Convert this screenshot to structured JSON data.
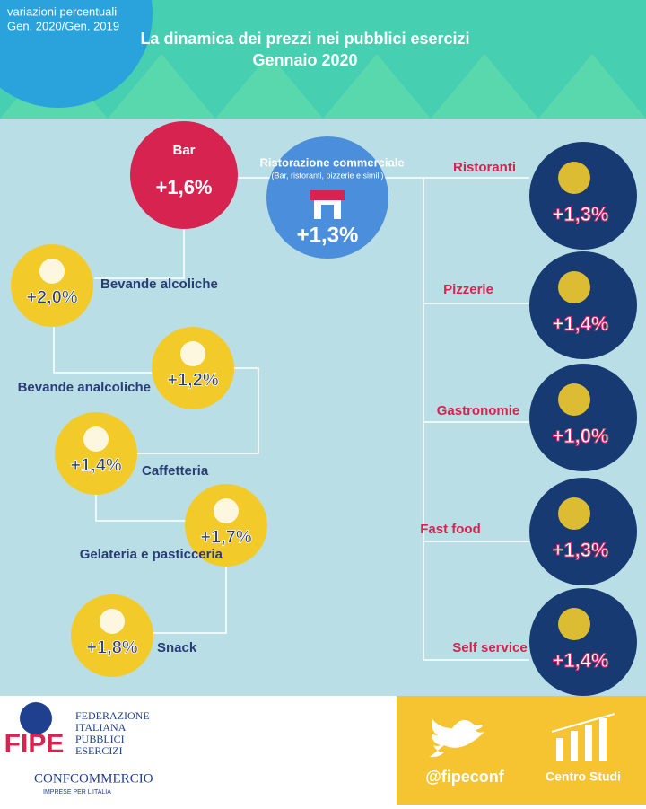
{
  "header": {
    "note": [
      "variazioni percentuali",
      "Gen. 2020/Gen. 2019"
    ],
    "title": [
      "La dinamica dei prezzi nei pubblici esercizi",
      "Gennaio 2020"
    ]
  },
  "center": {
    "label": "Ristorazione commerciale",
    "sublabel": "(Bar, ristoranti, pizzerie e simili)",
    "value": "+1,3%"
  },
  "bar": {
    "label": "Bar",
    "value": "+1,6%"
  },
  "bar_items": [
    {
      "label": "Bevande alcoliche",
      "value": "+2,0%"
    },
    {
      "label": "Bevande analcoliche",
      "value": "+1,2%"
    },
    {
      "label": "Caffetteria",
      "value": "+1,4%"
    },
    {
      "label": "Gelateria e pasticceria",
      "value": "+1,7%"
    },
    {
      "label": "Snack",
      "value": "+1,8%"
    }
  ],
  "restaurant_items": [
    {
      "label": "Ristoranti",
      "value": "+1,3%"
    },
    {
      "label": "Pizzerie",
      "value": "+1,4%"
    },
    {
      "label": "Gastronomie",
      "value": "+1,0%"
    },
    {
      "label": "Fast food",
      "value": "+1,3%"
    },
    {
      "label": "Self service",
      "value": "+1,4%"
    }
  ],
  "footer": {
    "logo": "FIPE",
    "federation": [
      "FEDERAZIONE",
      "ITALIANA",
      "PUBBLICI",
      "ESERCIZI"
    ],
    "confcommercio": "CONFCOMMERCIO",
    "tagline": "IMPRESE PER L'ITALIA",
    "twitter": "@fipeconf",
    "studi": "Centro Studi"
  }
}
